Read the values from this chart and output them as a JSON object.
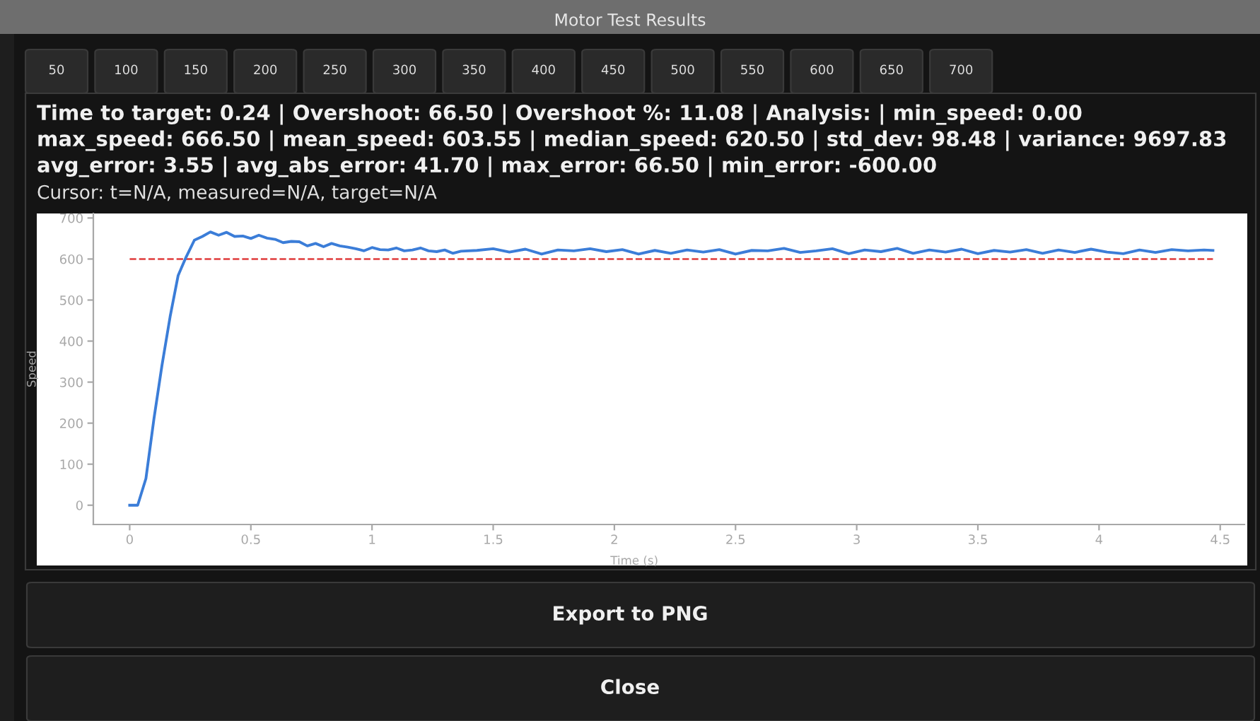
{
  "chart_data": {
    "type": "line",
    "title": "Motor Test Results",
    "xlabel": "Time (s)",
    "ylabel": "Speed",
    "xlim": [
      -0.15,
      4.6
    ],
    "ylim": [
      -47,
      711
    ],
    "xticks": [
      0,
      0.5,
      1,
      1.5,
      2,
      2.5,
      3,
      3.5,
      4,
      4.5
    ],
    "yticks": [
      0,
      100,
      200,
      300,
      400,
      500,
      600,
      700
    ],
    "grid": false,
    "series": [
      {
        "color": "#3b7dd8",
        "x": [
          0,
          0.033,
          0.067,
          0.1,
          0.133,
          0.167,
          0.2,
          0.233,
          0.267,
          0.3,
          0.333,
          0.367,
          0.4,
          0.433,
          0.467,
          0.5,
          0.533,
          0.567,
          0.6,
          0.633,
          0.667,
          0.7,
          0.733,
          0.767,
          0.8,
          0.833,
          0.867,
          0.9,
          0.933,
          0.967,
          1.0,
          1.033,
          1.067,
          1.1,
          1.133,
          1.167,
          1.2,
          1.233,
          1.267,
          1.3,
          1.333,
          1.367,
          1.433,
          1.5,
          1.567,
          1.633,
          1.7,
          1.767,
          1.833,
          1.9,
          1.967,
          2.033,
          2.1,
          2.167,
          2.233,
          2.3,
          2.367,
          2.433,
          2.5,
          2.567,
          2.633,
          2.7,
          2.767,
          2.833,
          2.9,
          2.967,
          3.033,
          3.1,
          3.167,
          3.233,
          3.3,
          3.367,
          3.433,
          3.5,
          3.567,
          3.633,
          3.7,
          3.767,
          3.833,
          3.9,
          3.967,
          4.033,
          4.1,
          4.167,
          4.233,
          4.3,
          4.367,
          4.433,
          4.47
        ],
        "values": [
          0,
          0,
          65,
          210,
          340,
          460,
          560,
          605,
          646,
          655,
          666,
          658,
          665,
          655,
          656,
          650,
          658,
          651,
          648,
          640,
          643,
          642,
          632,
          638,
          630,
          638,
          632,
          629,
          625,
          620,
          628,
          623,
          622,
          627,
          620,
          622,
          627,
          620,
          618,
          622,
          614,
          619,
          621,
          625,
          617,
          624,
          612,
          622,
          620,
          625,
          618,
          623,
          612,
          621,
          614,
          622,
          617,
          623,
          612,
          621,
          620,
          626,
          616,
          620,
          625,
          613,
          622,
          618,
          626,
          614,
          622,
          617,
          624,
          613,
          621,
          617,
          623,
          614,
          622,
          616,
          624,
          617,
          613,
          622,
          616,
          623,
          620,
          622,
          621
        ]
      }
    ],
    "ref_lines": [
      {
        "axis": "y",
        "value": 600,
        "color": "#e03c3c",
        "line_style": "dashed"
      }
    ],
    "annotations": [
      "50",
      "100",
      "150",
      "200",
      "250",
      "300",
      "350",
      "400",
      "450",
      "500",
      "550",
      "600",
      "650",
      "700",
      "Time to target: 0.24 | Overshoot: 66.50 | Overshoot %: 11.08 | Analysis: | min_speed: 0.00",
      "max_speed: 666.50 | mean_speed: 603.55 | median_speed: 620.50 | std_dev: 98.48 | variance: 9697.83",
      "avg_error: 3.55 | avg_abs_error: 41.70 | max_error: 66.50 | min_error: -600.00",
      "Cursor: t=N/A, measured=N/A, target=N/A",
      "Export to PNG",
      "Close"
    ]
  }
}
